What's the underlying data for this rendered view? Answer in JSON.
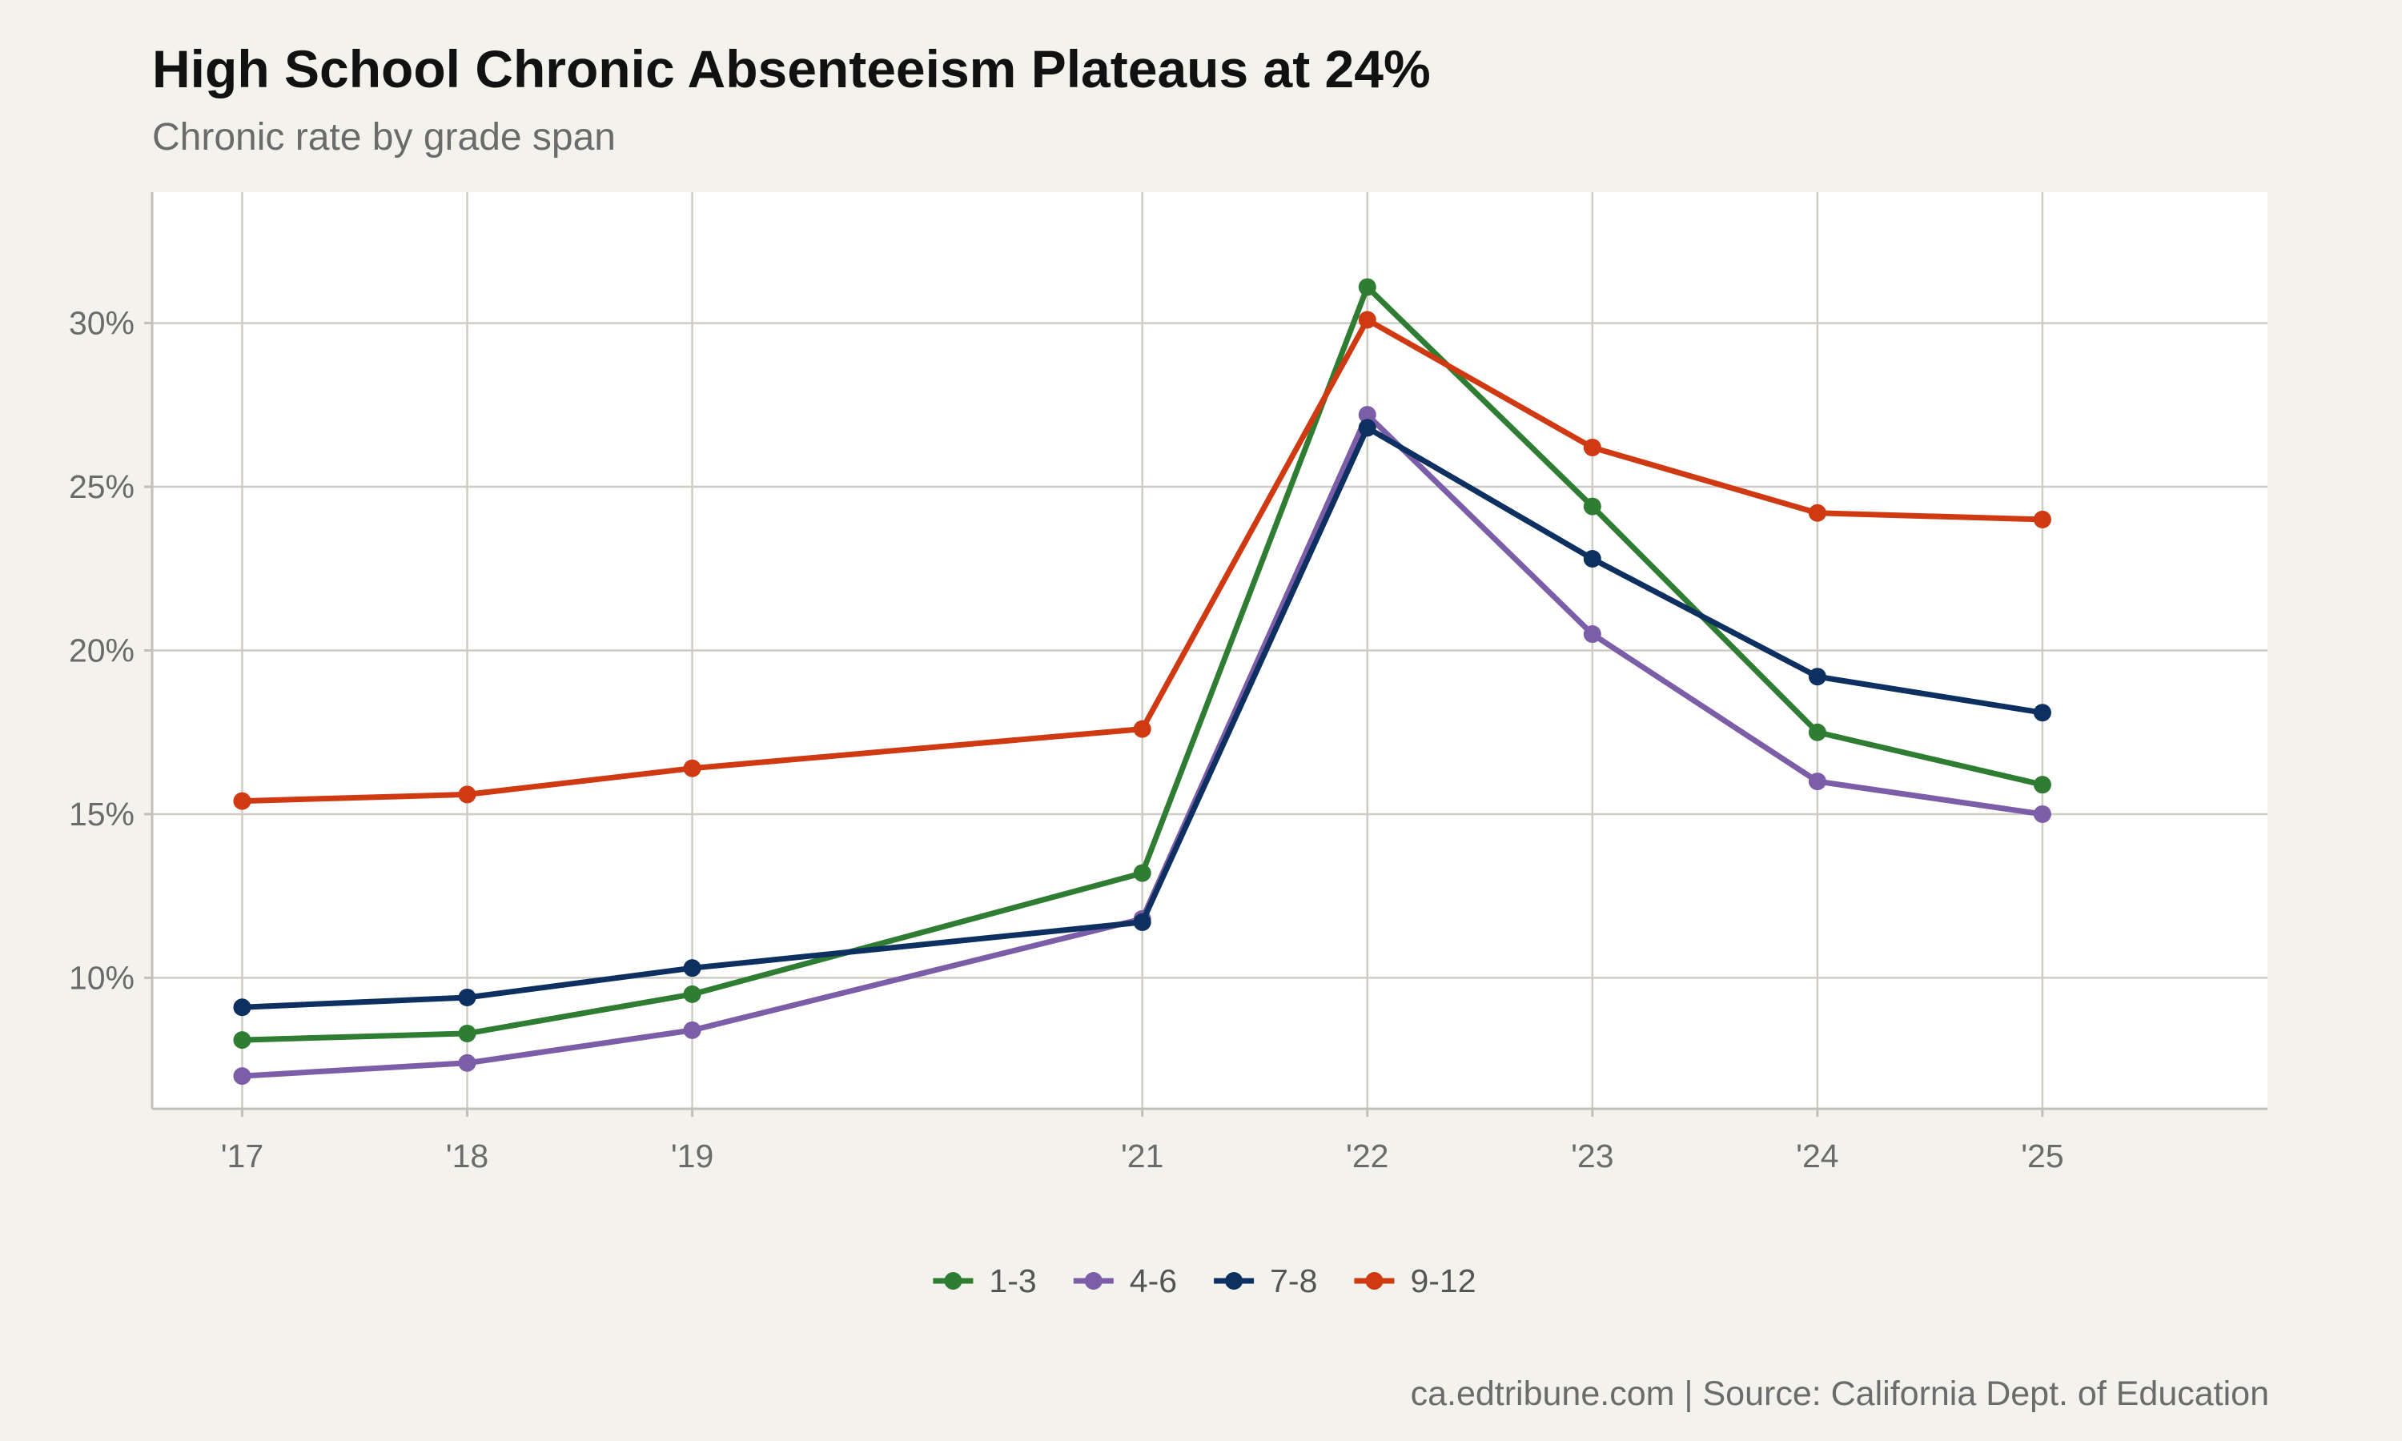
{
  "chart_data": {
    "type": "line",
    "title": "High School Chronic Absenteeism Plateaus at 24%",
    "subtitle": "Chronic rate by grade span",
    "caption": "ca.edtribune.com | Source: California Dept. of Education",
    "xlabel": "",
    "ylabel": "",
    "x": [
      2017,
      2018,
      2019,
      2021,
      2022,
      2023,
      2024,
      2025
    ],
    "x_tick_labels": [
      "'17",
      "'18",
      "'19",
      "'21",
      "'22",
      "'23",
      "'24",
      "'25"
    ],
    "xlim": [
      2016.6,
      2026.0
    ],
    "ylim": [
      6.0,
      34.0
    ],
    "y_ticks": [
      10,
      15,
      20,
      25,
      30
    ],
    "y_tick_labels": [
      "10%",
      "15%",
      "20%",
      "25%",
      "30%"
    ],
    "grid": true,
    "legend_position": "bottom",
    "series": [
      {
        "name": "1-3",
        "color": "#2e7d32",
        "values": [
          8.1,
          8.3,
          9.5,
          13.2,
          31.1,
          24.4,
          17.5,
          15.9
        ]
      },
      {
        "name": "4-6",
        "color": "#7b5ea7",
        "values": [
          7.0,
          7.4,
          8.4,
          11.8,
          27.2,
          20.5,
          16.0,
          15.0
        ]
      },
      {
        "name": "7-8",
        "color": "#0d3060",
        "values": [
          9.1,
          9.4,
          10.3,
          11.7,
          26.8,
          22.8,
          19.2,
          18.1
        ]
      },
      {
        "name": "9-12",
        "color": "#d03a12",
        "values": [
          15.4,
          15.6,
          16.4,
          17.6,
          30.1,
          26.2,
          24.2,
          24.0
        ]
      }
    ]
  }
}
